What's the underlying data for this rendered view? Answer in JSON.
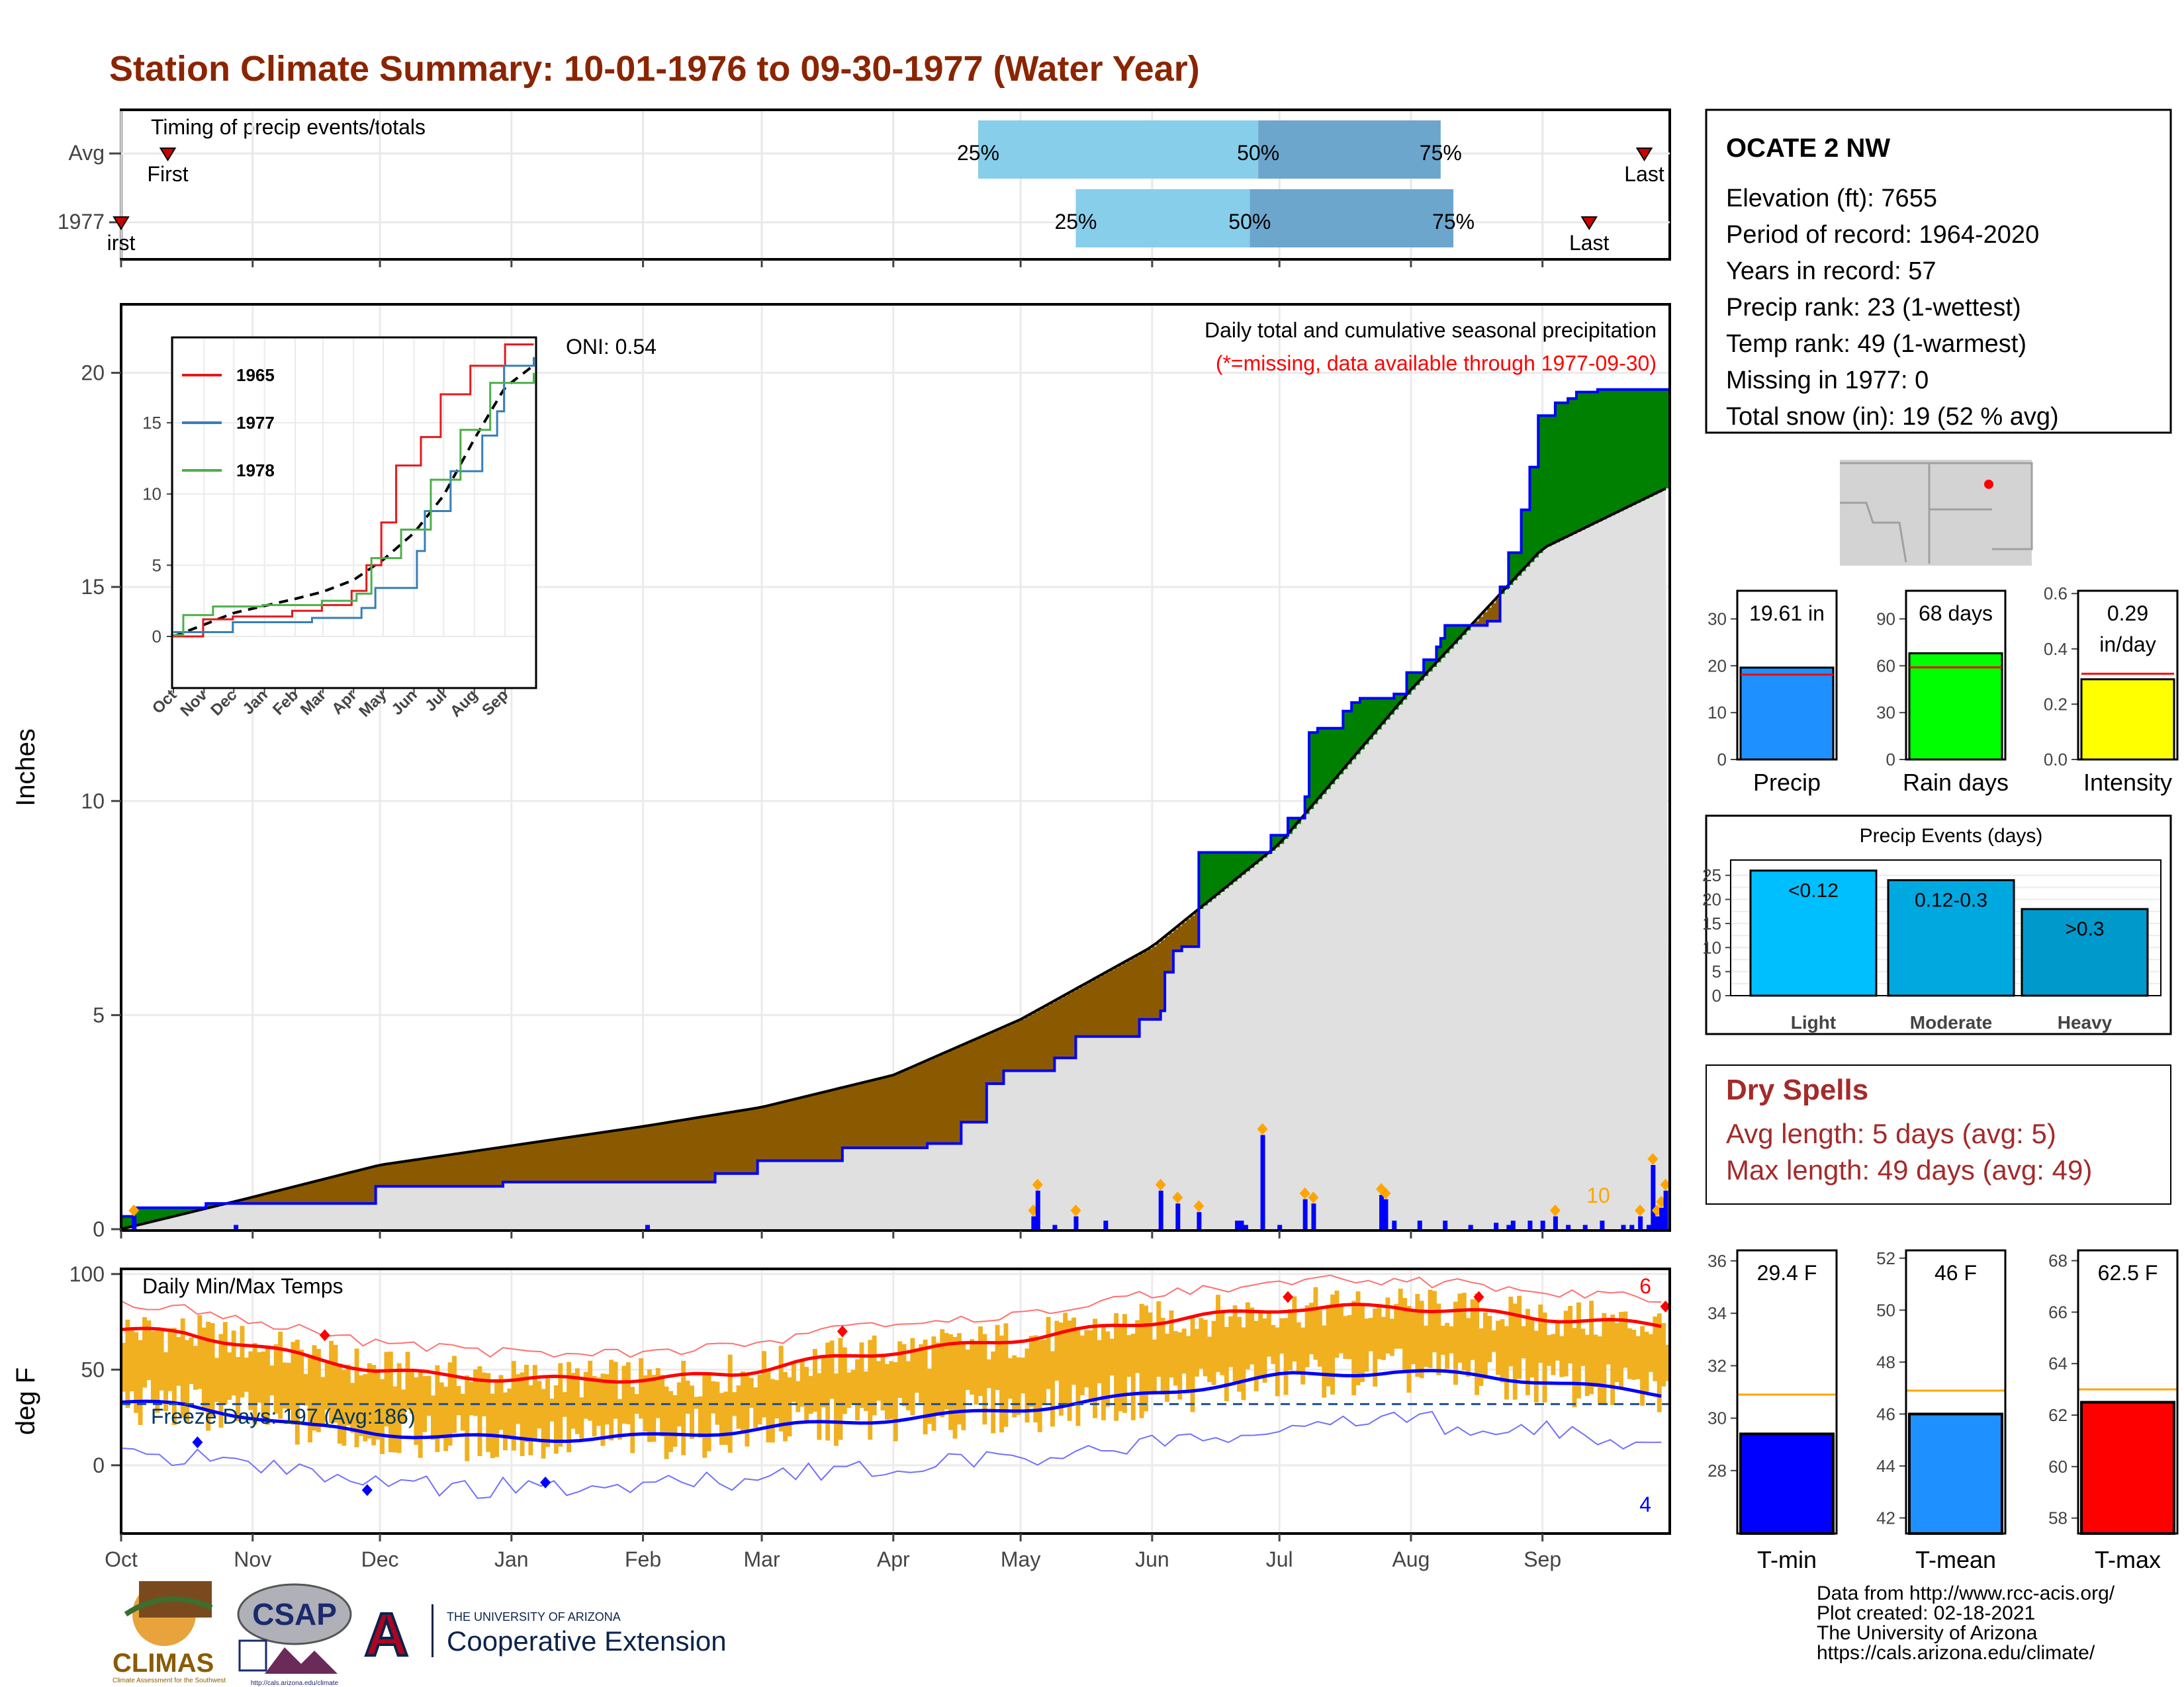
{
  "title": "Station Climate Summary: 10-01-1976 to 09-30-1977 (Water Year)",
  "colors": {
    "title": "#8B2500",
    "precip_blue": "#0000FF",
    "above_green": "#008000",
    "below_brown": "#8B5A00",
    "normal_gray": "#E0E0E0",
    "tmax_red": "#FF0000",
    "tmin_blue": "#0000FF",
    "temp_bar": "#F0B020",
    "q_light": "#87CEEB",
    "q_dark": "#6CA6CD",
    "dry_red": "#A52A2A"
  },
  "timing": {
    "title": "Timing of precip events/totals",
    "rows": [
      {
        "label": "Avg",
        "first_label": "First",
        "last_label": "Last",
        "first_date": "1976-10-12",
        "last_date": "1977-09-25",
        "q25_label": "25%",
        "q50_label": "50%",
        "q75_label": "75%",
        "q25": "1977-04-21",
        "q50": "1977-06-26",
        "q75": "1977-08-08"
      },
      {
        "label": "1977",
        "first_label": "irst",
        "last_label": "Last",
        "first_date": "1976-10-01",
        "last_date": "1977-09-12",
        "q25_label": "25%",
        "q50_label": "50%",
        "q75_label": "75%",
        "q25": "1977-05-14",
        "q50": "1977-06-24",
        "q75": "1977-08-11"
      }
    ]
  },
  "precip_panel": {
    "ylabel": "Inches",
    "y_ticks": [
      "0",
      "5",
      "10",
      "15",
      "20"
    ],
    "oni": "ONI: 0.54",
    "caption": "Daily total and cumulative seasonal precipitation",
    "missing_note": "(*=missing, data available through 1977-09-30)",
    "big_event_count": "10"
  },
  "inset": {
    "y_ticks": [
      "0",
      "5",
      "10",
      "15"
    ],
    "x_ticks": [
      "Oct",
      "Nov",
      "Dec",
      "Jan",
      "Feb",
      "Mar",
      "Apr",
      "May",
      "Jun",
      "Jul",
      "Aug",
      "Sep"
    ],
    "legend": [
      "1965",
      "1977",
      "1978"
    ]
  },
  "temp_panel": {
    "ylabel": "deg F",
    "title": "Daily Min/Max Temps",
    "y_ticks": [
      "100",
      "50",
      "0"
    ],
    "freeze_text": "Freeze Days: 197 (Avg:186)",
    "record_high_count": "6",
    "record_low_count": "4"
  },
  "x_month_labels": [
    "Oct",
    "Nov",
    "Dec",
    "Jan",
    "Feb",
    "Mar",
    "Apr",
    "May",
    "Jun",
    "Jul",
    "Aug",
    "Sep"
  ],
  "station": {
    "name": "OCATE 2 NW",
    "lines": [
      "Elevation (ft): 7655",
      "Period of record: 1964-2020",
      "Years in record: 57",
      "Precip rank: 23 (1-wettest)",
      "Temp rank: 49 (1-warmest)",
      "Missing in 1977: 0",
      "Total snow (in): 19 (52 % avg)"
    ]
  },
  "bar_stats": [
    {
      "label": "Precip",
      "value_text": "19.61 in",
      "ticks": [
        "0",
        "10",
        "20",
        "30"
      ],
      "tick_values": [
        0,
        10,
        20,
        30
      ],
      "ymax": 36,
      "value": 19.61,
      "avg": 18.1,
      "color": "#1E90FF"
    },
    {
      "label": "Rain days",
      "value_text": "68 days",
      "ticks": [
        "0",
        "30",
        "60",
        "90"
      ],
      "tick_values": [
        0,
        30,
        60,
        90
      ],
      "ymax": 108,
      "value": 68,
      "avg": 59,
      "color": "#00FF00"
    },
    {
      "label": "Intensity",
      "value_text": "0.29",
      "value_text2": "in/day",
      "ticks": [
        "0.0",
        "0.2",
        "0.4",
        "0.6"
      ],
      "tick_values": [
        0,
        0.2,
        0.4,
        0.6
      ],
      "ymax": 0.61,
      "value": 0.29,
      "avg": 0.31,
      "color": "#FFFF00"
    }
  ],
  "precip_events": {
    "title": "Precip Events (days)",
    "ticks": [
      "0",
      "5",
      "10",
      "15",
      "20",
      "25"
    ],
    "categories": [
      "Light",
      "Moderate",
      "Heavy"
    ],
    "bar_labels": [
      "<0.12",
      "0.12-0.3",
      ">0.3"
    ],
    "values": [
      26,
      24,
      18
    ],
    "colors": [
      "#00BFFF",
      "#00A8E0",
      "#0099CC"
    ]
  },
  "dry_spells": {
    "title": "Dry Spells",
    "lines": [
      "Avg length: 5 days (avg: 5)",
      "Max length: 49 days (avg: 49)"
    ]
  },
  "temp_stats": [
    {
      "label": "T-min",
      "value_text": "29.4 F",
      "ticks": [
        "28",
        "30",
        "32",
        "34",
        "36"
      ],
      "ymin": 25.6,
      "ymax": 36.4,
      "value": 29.4,
      "avg": 30.9,
      "color": "#0000FF"
    },
    {
      "label": "T-mean",
      "value_text": "46 F",
      "ticks": [
        "42",
        "44",
        "46",
        "48",
        "50",
        "52"
      ],
      "ymin": 41.4,
      "ymax": 52.3,
      "value": 46.0,
      "avg": 46.9,
      "color": "#1E90FF"
    },
    {
      "label": "T-max",
      "value_text": "62.5 F",
      "ticks": [
        "58",
        "60",
        "62",
        "64",
        "66",
        "68"
      ],
      "ymin": 57.4,
      "ymax": 68.4,
      "value": 62.5,
      "avg": 63.0,
      "color": "#FF0000"
    }
  ],
  "credits": [
    "Data from http://www.rcc-acis.org/",
    "Plot created: 02-18-2021",
    "The University of Arizona",
    "https://cals.arizona.edu/climate/"
  ],
  "logos": {
    "climas": "CLIMAS",
    "climas_tagline": "Climate Assessment for the Southwest",
    "csap": "CSAP",
    "csap_url": "http://cals.arizona.edu/climate",
    "ua_letter": "A",
    "ua_small": "THE UNIVERSITY OF ARIZONA",
    "ua_big": "Cooperative Extension"
  },
  "chart_data": {
    "type": "area",
    "title": "Daily total and cumulative seasonal precipitation",
    "ylabel": "Inches",
    "ylim": [
      0,
      21
    ],
    "x_start": "1976-10-01",
    "x_end": "1977-09-30",
    "series": [
      {
        "name": "1977",
        "cumulative_steps": [
          [
            0,
            0.3
          ],
          [
            3,
            0.5
          ],
          [
            20,
            0.6
          ],
          [
            60,
            1.0
          ],
          [
            90,
            1.1
          ],
          [
            140,
            1.3
          ],
          [
            150,
            1.6
          ],
          [
            170,
            1.9
          ],
          [
            190,
            2.0
          ],
          [
            198,
            2.5
          ],
          [
            204,
            3.4
          ],
          [
            208,
            3.7
          ],
          [
            220,
            4.0
          ],
          [
            225,
            4.5
          ],
          [
            240,
            4.9
          ],
          [
            245,
            5.1
          ],
          [
            246,
            6.0
          ],
          [
            248,
            6.5
          ],
          [
            250,
            6.6
          ],
          [
            254,
            8.8
          ],
          [
            270,
            8.8
          ],
          [
            271,
            9.2
          ],
          [
            275,
            9.6
          ],
          [
            279,
            10.1
          ],
          [
            280,
            11.6
          ],
          [
            282,
            11.7
          ],
          [
            288,
            12.1
          ],
          [
            290,
            12.3
          ],
          [
            292,
            12.4
          ],
          [
            300,
            12.5
          ],
          [
            303,
            13.0
          ],
          [
            307,
            13.3
          ],
          [
            310,
            13.6
          ],
          [
            311,
            13.8
          ],
          [
            312,
            14.1
          ],
          [
            322,
            14.2
          ],
          [
            325,
            15.0
          ],
          [
            327,
            15.8
          ],
          [
            330,
            16.8
          ],
          [
            332,
            17.8
          ],
          [
            334,
            19.0
          ],
          [
            338,
            19.3
          ],
          [
            341,
            19.4
          ],
          [
            343,
            19.55
          ],
          [
            348,
            19.61
          ],
          [
            364,
            19.61
          ]
        ]
      },
      {
        "name": "Normal",
        "cumulative_curve": [
          [
            0,
            0.0
          ],
          [
            31,
            0.75
          ],
          [
            61,
            1.5
          ],
          [
            92,
            1.95
          ],
          [
            123,
            2.4
          ],
          [
            151,
            2.85
          ],
          [
            182,
            3.6
          ],
          [
            212,
            4.9
          ],
          [
            243,
            6.6
          ],
          [
            273,
            9.0
          ],
          [
            304,
            12.6
          ],
          [
            335,
            15.9
          ],
          [
            364,
            17.3
          ]
        ]
      }
    ],
    "daily_precip": [
      [
        3,
        0.3
      ],
      [
        27,
        0.1
      ],
      [
        124,
        0.1
      ],
      [
        215,
        0.3
      ],
      [
        216,
        0.9
      ],
      [
        220,
        0.1
      ],
      [
        225,
        0.3
      ],
      [
        232,
        0.2
      ],
      [
        245,
        0.9
      ],
      [
        249,
        0.6
      ],
      [
        254,
        0.4
      ],
      [
        263,
        0.2
      ],
      [
        264,
        0.2
      ],
      [
        265,
        0.1
      ],
      [
        269,
        2.2
      ],
      [
        273,
        0.1
      ],
      [
        279,
        0.7
      ],
      [
        281,
        0.6
      ],
      [
        297,
        0.8
      ],
      [
        298,
        0.7
      ],
      [
        300,
        0.2
      ],
      [
        306,
        0.2
      ],
      [
        312,
        0.2
      ],
      [
        318,
        0.1
      ],
      [
        324,
        0.15
      ],
      [
        327,
        0.1
      ],
      [
        328,
        0.2
      ],
      [
        332,
        0.2
      ],
      [
        335,
        0.2
      ],
      [
        338,
        0.3
      ],
      [
        341,
        0.1
      ],
      [
        345,
        0.1
      ],
      [
        349,
        0.2
      ],
      [
        354,
        0.1
      ],
      [
        356,
        0.1
      ],
      [
        358,
        0.3
      ],
      [
        360,
        0.1
      ],
      [
        361,
        1.5
      ],
      [
        362,
        0.3
      ],
      [
        363,
        0.5
      ],
      [
        364,
        0.9
      ]
    ],
    "inset_series": [
      {
        "name": "1965",
        "points": [
          [
            0,
            0
          ],
          [
            30,
            1.2
          ],
          [
            60,
            1.4
          ],
          [
            120,
            1.8
          ],
          [
            150,
            2.2
          ],
          [
            180,
            3.2
          ],
          [
            195,
            5
          ],
          [
            210,
            8
          ],
          [
            225,
            12
          ],
          [
            250,
            14
          ],
          [
            270,
            17
          ],
          [
            300,
            19
          ],
          [
            335,
            20.5
          ],
          [
            364,
            20.5
          ]
        ]
      },
      {
        "name": "1977",
        "points": [
          [
            0,
            0.3
          ],
          [
            60,
            1.0
          ],
          [
            140,
            1.3
          ],
          [
            190,
            2.0
          ],
          [
            204,
            3.4
          ],
          [
            246,
            6.0
          ],
          [
            254,
            8.8
          ],
          [
            280,
            11.6
          ],
          [
            312,
            14.1
          ],
          [
            327,
            15.8
          ],
          [
            334,
            19.0
          ],
          [
            364,
            19.61
          ]
        ]
      },
      {
        "name": "1978",
        "points": [
          [
            0,
            0.1
          ],
          [
            10,
            1.5
          ],
          [
            40,
            2.1
          ],
          [
            90,
            2.2
          ],
          [
            150,
            2.5
          ],
          [
            185,
            3.0
          ],
          [
            200,
            5.5
          ],
          [
            230,
            7.5
          ],
          [
            260,
            11
          ],
          [
            290,
            14.5
          ],
          [
            320,
            17.8
          ],
          [
            364,
            18.5
          ]
        ]
      }
    ],
    "temp": {
      "ylim": [
        -35,
        102
      ],
      "tmax_climo": [
        [
          0,
          71
        ],
        [
          15,
          69
        ],
        [
          30,
          63
        ],
        [
          45,
          56
        ],
        [
          60,
          50
        ],
        [
          75,
          47
        ],
        [
          92,
          45
        ],
        [
          110,
          45
        ],
        [
          125,
          45
        ],
        [
          145,
          48
        ],
        [
          160,
          54
        ],
        [
          180,
          59
        ],
        [
          200,
          63
        ],
        [
          215,
          67
        ],
        [
          235,
          73
        ],
        [
          255,
          78
        ],
        [
          275,
          82
        ],
        [
          300,
          83
        ],
        [
          320,
          80
        ],
        [
          335,
          77
        ],
        [
          350,
          75
        ],
        [
          364,
          73
        ]
      ],
      "tmin_climo": [
        [
          0,
          33
        ],
        [
          15,
          31
        ],
        [
          30,
          26
        ],
        [
          45,
          20
        ],
        [
          60,
          17
        ],
        [
          75,
          15
        ],
        [
          92,
          14
        ],
        [
          110,
          14
        ],
        [
          125,
          15
        ],
        [
          145,
          18
        ],
        [
          160,
          21
        ],
        [
          180,
          24
        ],
        [
          200,
          27
        ],
        [
          215,
          30
        ],
        [
          235,
          35
        ],
        [
          255,
          41
        ],
        [
          275,
          47
        ],
        [
          300,
          49
        ],
        [
          320,
          47
        ],
        [
          335,
          44
        ],
        [
          350,
          40
        ],
        [
          364,
          37
        ]
      ],
      "freeze_line": 32
    }
  }
}
